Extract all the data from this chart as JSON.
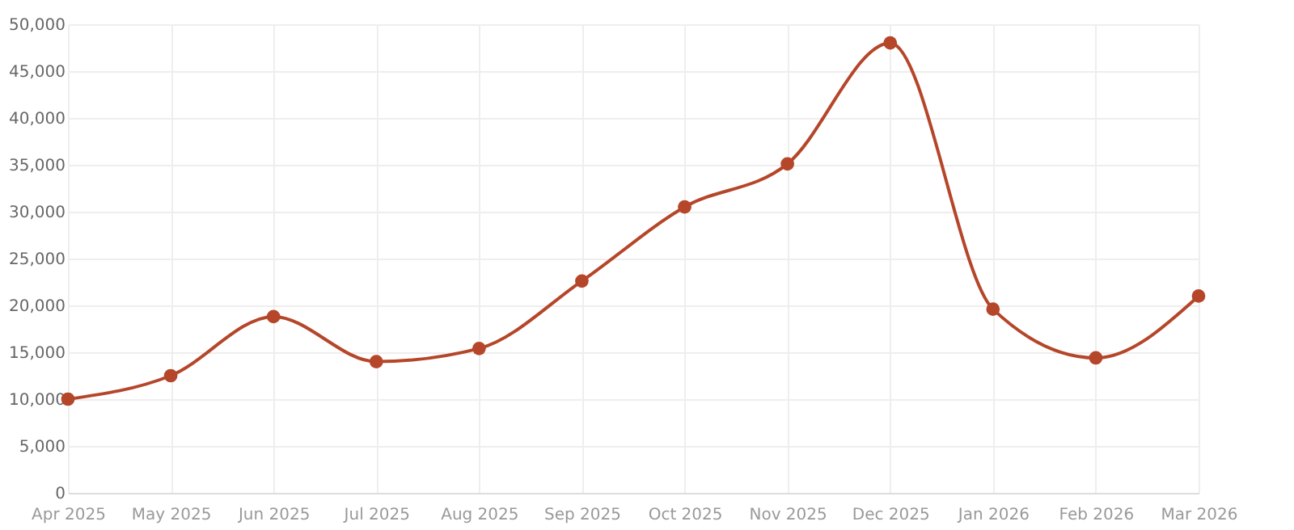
{
  "chart_data": {
    "type": "line",
    "categories": [
      "Apr 2025",
      "May 2025",
      "Jun 2025",
      "Jul 2025",
      "Aug 2025",
      "Sep 2025",
      "Oct 2025",
      "Nov 2025",
      "Dec 2025",
      "Jan 2026",
      "Feb 2026",
      "Mar 2026"
    ],
    "series": [
      {
        "color": "#b5462a",
        "values": [
          10000,
          12500,
          18800,
          14000,
          15400,
          22600,
          30500,
          35100,
          48000,
          19600,
          14400,
          21000
        ]
      }
    ],
    "ylim": [
      0,
      50000
    ],
    "yticks": [
      0,
      {
        "value": 5000,
        "label": "5,000"
      },
      {
        "value": 10000,
        "label": "10,000"
      },
      {
        "value": 15000,
        "label": "15,000"
      },
      {
        "value": 20000,
        "label": "20,000"
      },
      {
        "value": 25000,
        "label": "25,000"
      },
      {
        "value": 30000,
        "label": "30,000"
      },
      {
        "value": 35000,
        "label": "35,000"
      },
      {
        "value": 40000,
        "label": "40,000"
      },
      {
        "value": 45000,
        "label": "45,000"
      },
      {
        "value": 50000,
        "label": "50,000"
      }
    ],
    "grid": true,
    "marker": "circle",
    "line_style": "solid"
  }
}
